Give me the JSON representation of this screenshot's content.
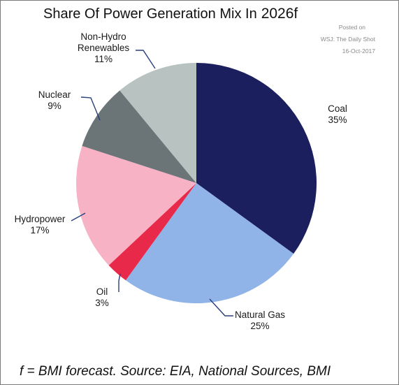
{
  "title": "Share Of Power Generation Mix In",
  "title_suffix": "2026f",
  "credit": {
    "posted_on": "Posted on",
    "source": "WSJ: The Daily Shot",
    "date": "16-Oct-2017"
  },
  "footer": "f = BMI forecast. Source: EIA, National Sources, BMI",
  "chart_data": {
    "type": "pie",
    "title": "Share Of Power Generation Mix In 2026f",
    "start_angle_deg": 0,
    "direction": "clockwise",
    "slices": [
      {
        "label": "Coal",
        "value_label": "35%",
        "value": 35,
        "color": "#1b1f5e"
      },
      {
        "label": "Natural Gas",
        "value_label": "25%",
        "value": 25,
        "color": "#90b3e8"
      },
      {
        "label": "Oil",
        "value_label": "3%",
        "value": 3,
        "color": "#e8294a"
      },
      {
        "label": "Hydropower",
        "value_label": "17%",
        "value": 17,
        "color": "#f7b3c5"
      },
      {
        "label": "Nuclear",
        "value_label": "9%",
        "value": 9,
        "color": "#6b7477"
      },
      {
        "label": "Non-Hydro Renewables",
        "label_lines": [
          "Non-Hydro",
          "Renewables"
        ],
        "value_label": "11%",
        "value": 11,
        "color": "#b8c2c1"
      }
    ]
  }
}
